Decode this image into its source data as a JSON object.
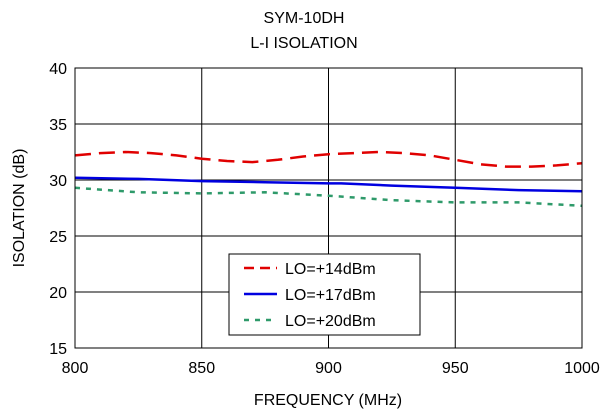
{
  "chart_data": {
    "type": "line",
    "title": "SYM-10DH",
    "subtitle": "L-I ISOLATION",
    "xlabel": "FREQUENCY (MHz)",
    "ylabel": "ISOLATION (dB)",
    "xlim": [
      800,
      1000
    ],
    "ylim": [
      15,
      40
    ],
    "xticks": [
      800,
      850,
      900,
      950,
      1000
    ],
    "yticks": [
      15,
      20,
      25,
      30,
      35,
      40
    ],
    "grid": true,
    "legend_position": "bottom-center",
    "series": [
      {
        "name": "LO=+14dBm",
        "color": "#e00000",
        "style": "dashed",
        "x": [
          800,
          810,
          820,
          830,
          840,
          850,
          860,
          870,
          880,
          890,
          900,
          910,
          920,
          930,
          940,
          950,
          960,
          970,
          980,
          990,
          1000
        ],
        "y": [
          32.2,
          32.4,
          32.5,
          32.4,
          32.2,
          31.9,
          31.7,
          31.6,
          31.8,
          32.1,
          32.3,
          32.4,
          32.5,
          32.4,
          32.2,
          31.8,
          31.4,
          31.2,
          31.2,
          31.3,
          31.5
        ]
      },
      {
        "name": "LO=+17dBm",
        "color": "#0000e0",
        "style": "solid",
        "x": [
          800,
          825,
          850,
          875,
          900,
          905,
          925,
          950,
          975,
          1000
        ],
        "y": [
          30.2,
          30.1,
          29.9,
          29.8,
          29.7,
          29.7,
          29.5,
          29.3,
          29.1,
          29.0
        ]
      },
      {
        "name": "LO=+20dBm",
        "color": "#2e9a6a",
        "style": "dotted",
        "x": [
          800,
          825,
          850,
          875,
          900,
          925,
          950,
          975,
          1000
        ],
        "y": [
          29.3,
          28.9,
          28.8,
          28.9,
          28.6,
          28.2,
          28.0,
          28.0,
          27.7
        ]
      }
    ]
  }
}
